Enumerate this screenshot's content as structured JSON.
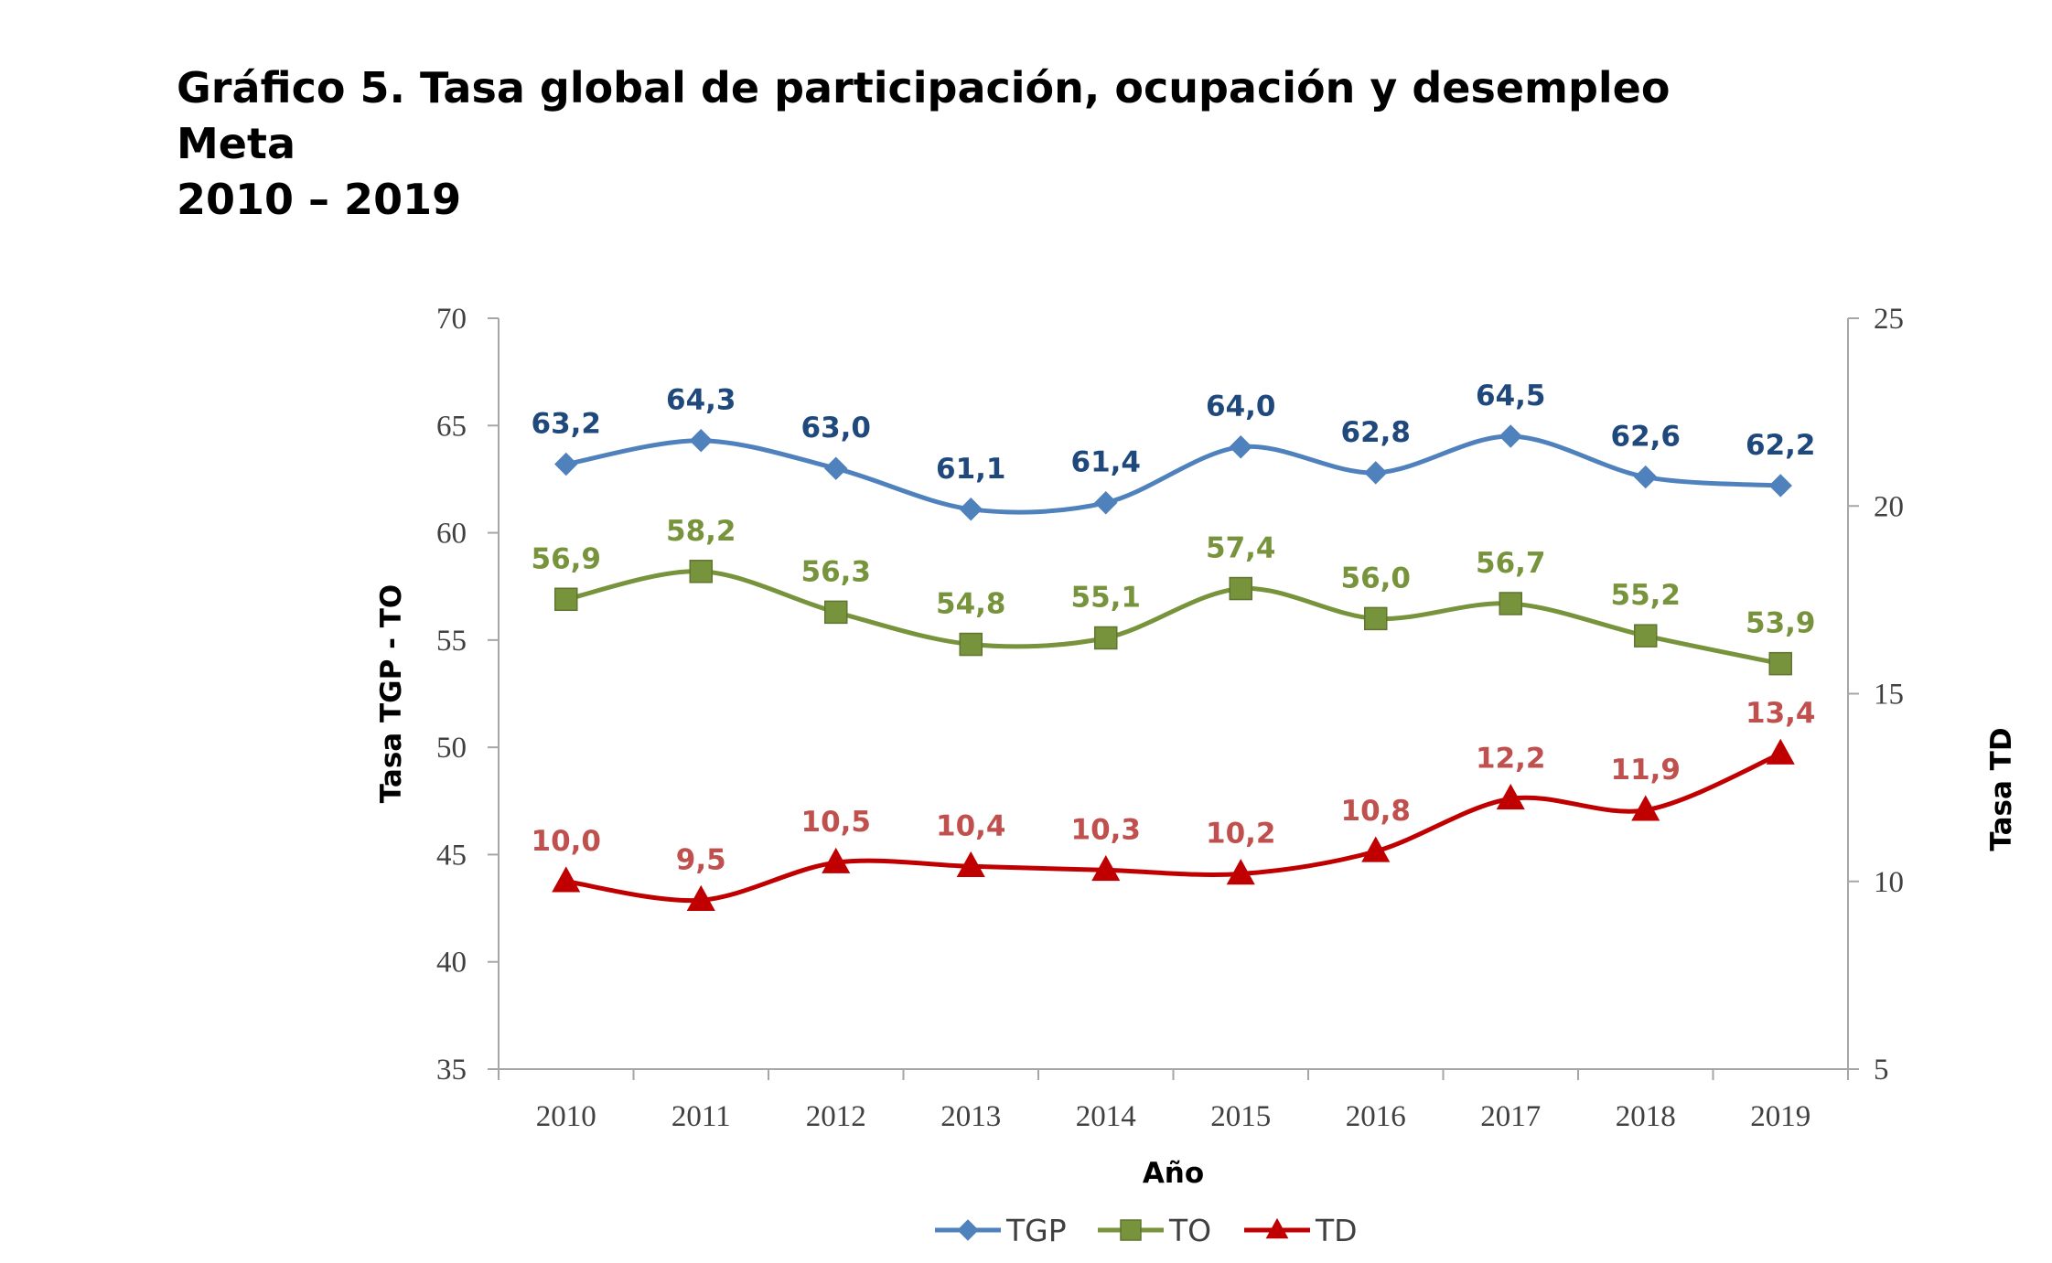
{
  "title": {
    "line1": "Gráfico 5. Tasa global de participación, ocupación y desempleo",
    "line2": "Meta",
    "line3": "2010 – 2019"
  },
  "chart_data": {
    "type": "line",
    "xlabel": "Año",
    "ylabel": "Tasa TGP - TO",
    "y2label": "Tasa TD",
    "categories": [
      "2010",
      "2011",
      "2012",
      "2013",
      "2014",
      "2015",
      "2016",
      "2017",
      "2018",
      "2019"
    ],
    "ylim": [
      35,
      70
    ],
    "yticks": [
      35,
      40,
      45,
      50,
      55,
      60,
      65,
      70
    ],
    "y2lim": [
      5,
      25
    ],
    "y2ticks": [
      5,
      10,
      15,
      20,
      25
    ],
    "grid": false,
    "legend_position": "bottom",
    "series": [
      {
        "name": "TGP",
        "axis": "left",
        "marker": "diamond",
        "color": "#4F81BD",
        "label_color": "#1F497D",
        "values": [
          63.2,
          64.3,
          63.0,
          61.1,
          61.4,
          64.0,
          62.8,
          64.5,
          62.6,
          62.2
        ],
        "labels": [
          "63,2",
          "64,3",
          "63,0",
          "61,1",
          "61,4",
          "64,0",
          "62,8",
          "64,5",
          "62,6",
          "62,2"
        ]
      },
      {
        "name": "TO",
        "axis": "left",
        "marker": "square",
        "color": "#77933C",
        "label_color": "#77933C",
        "values": [
          56.9,
          58.2,
          56.3,
          54.8,
          55.1,
          57.4,
          56.0,
          56.7,
          55.2,
          53.9
        ],
        "labels": [
          "56,9",
          "58,2",
          "56,3",
          "54,8",
          "55,1",
          "57,4",
          "56,0",
          "56,7",
          "55,2",
          "53,9"
        ]
      },
      {
        "name": "TD",
        "axis": "right",
        "marker": "triangle",
        "color": "#C00000",
        "label_color": "#C0504D",
        "values": [
          10.0,
          9.5,
          10.5,
          10.4,
          10.3,
          10.2,
          10.8,
          12.2,
          11.9,
          13.4
        ],
        "labels": [
          "10,0",
          "9,5",
          "10,5",
          "10,4",
          "10,3",
          "10,2",
          "10,8",
          "12,2",
          "11,9",
          "13,4"
        ]
      }
    ]
  }
}
